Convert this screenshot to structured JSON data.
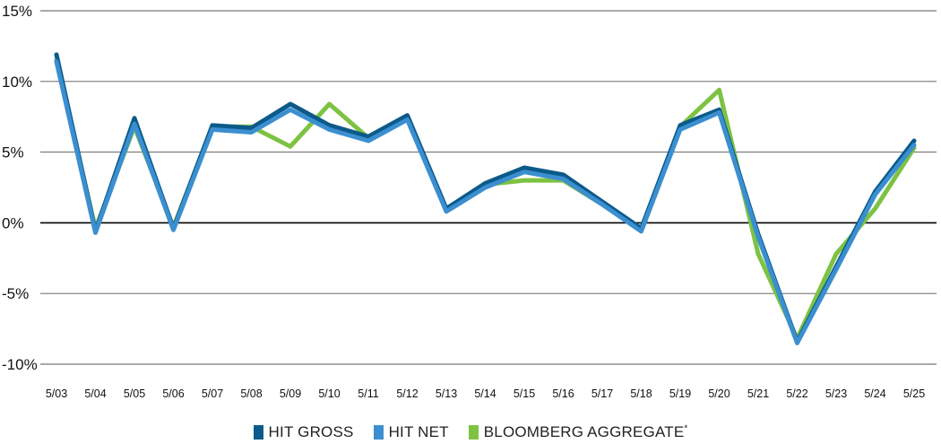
{
  "chart_data": {
    "type": "line",
    "x": [
      "5/03",
      "5/04",
      "5/05",
      "5/06",
      "5/07",
      "5/08",
      "5/09",
      "5/10",
      "5/11",
      "5/12",
      "5/13",
      "5/14",
      "5/15",
      "5/16",
      "5/17",
      "5/18",
      "5/19",
      "5/20",
      "5/21",
      "5/22",
      "5/23",
      "5/24",
      "5/25"
    ],
    "ylim": [
      -10,
      15
    ],
    "yticks": [
      15,
      10,
      5,
      0,
      -5,
      -10
    ],
    "ytick_labels": [
      "15%",
      "10%",
      "5%",
      "0%",
      "-5%",
      "-10%"
    ],
    "grid": true,
    "legend_position": "bottom",
    "series": [
      {
        "name": "BLOOMBERG AGGREGATE",
        "name_superscript": "*",
        "color": "#7dc242",
        "values": [
          11.5,
          -0.4,
          6.8,
          -0.3,
          6.8,
          6.8,
          5.4,
          8.4,
          6.0,
          7.3,
          0.9,
          2.7,
          3.0,
          3.0,
          1.3,
          -0.5,
          6.8,
          9.4,
          -2.2,
          -8.2,
          -2.2,
          1.0,
          5.3
        ]
      },
      {
        "name": "HIT GROSS",
        "color": "#0b5a8a",
        "values": [
          11.9,
          -0.6,
          7.4,
          -0.4,
          6.9,
          6.7,
          8.4,
          6.9,
          6.1,
          7.6,
          1.0,
          2.8,
          3.9,
          3.4,
          1.5,
          -0.4,
          6.9,
          8.0,
          -0.8,
          -8.4,
          -3.1,
          2.2,
          5.8
        ]
      },
      {
        "name": "HIT NET",
        "color": "#3b8fd0",
        "values": [
          11.4,
          -0.7,
          7.0,
          -0.5,
          6.6,
          6.4,
          8.0,
          6.6,
          5.8,
          7.3,
          0.8,
          2.5,
          3.6,
          3.1,
          1.3,
          -0.6,
          6.6,
          7.8,
          -1.0,
          -8.5,
          -3.3,
          2.0,
          5.5
        ]
      }
    ],
    "legend_order": [
      "HIT GROSS",
      "HIT NET",
      "BLOOMBERG AGGREGATE"
    ]
  },
  "legend": {
    "gross_label": "HIT GROSS",
    "net_label": "HIT NET",
    "bloomberg_label": "BLOOMBERG AGGREGATE",
    "bloomberg_sup": "*"
  }
}
